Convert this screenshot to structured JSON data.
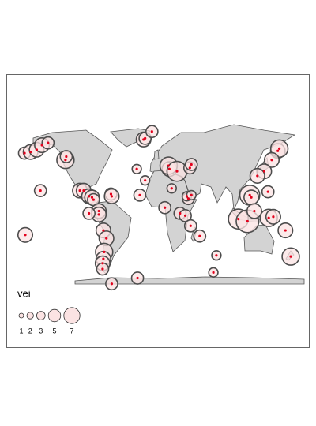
{
  "map": {
    "legend": {
      "title": "vei",
      "values": [
        1,
        2,
        3,
        5,
        7
      ]
    },
    "volcanoes": [
      {
        "lon": -176,
        "lat": 52,
        "vei": 3
      },
      {
        "lon": -168,
        "lat": 53,
        "vei": 4
      },
      {
        "lon": -160,
        "lat": 55,
        "vei": 4
      },
      {
        "lon": -153,
        "lat": 59,
        "vei": 4
      },
      {
        "lon": -145,
        "lat": 61,
        "vei": 3
      },
      {
        "lon": -122,
        "lat": 46,
        "vei": 5
      },
      {
        "lon": -121,
        "lat": 49,
        "vei": 3
      },
      {
        "lon": -103,
        "lat": 19,
        "vei": 4
      },
      {
        "lon": -98,
        "lat": 19,
        "vei": 4
      },
      {
        "lon": -91,
        "lat": 14,
        "vei": 4
      },
      {
        "lon": -87,
        "lat": 13,
        "vei": 4
      },
      {
        "lon": -85,
        "lat": 11,
        "vei": 3
      },
      {
        "lon": -62,
        "lat": 16,
        "vei": 3
      },
      {
        "lon": -61,
        "lat": 14,
        "vei": 4
      },
      {
        "lon": -78,
        "lat": 1,
        "vei": 4
      },
      {
        "lon": -78,
        "lat": -2,
        "vei": 4
      },
      {
        "lon": -72,
        "lat": -16,
        "vei": 4
      },
      {
        "lon": -68,
        "lat": -23,
        "vei": 4
      },
      {
        "lon": -71,
        "lat": -35,
        "vei": 5
      },
      {
        "lon": -72,
        "lat": -41,
        "vei": 4
      },
      {
        "lon": -73,
        "lat": -45,
        "vei": 4
      },
      {
        "lon": -73,
        "lat": -50,
        "vei": 3
      },
      {
        "lon": -91,
        "lat": -1,
        "vei": 3
      },
      {
        "lon": -155,
        "lat": 19,
        "vei": 3
      },
      {
        "lon": -175,
        "lat": -20,
        "vei": 4
      },
      {
        "lon": -19,
        "lat": 64,
        "vei": 4
      },
      {
        "lon": -17,
        "lat": 65,
        "vei": 3
      },
      {
        "lon": -8,
        "lat": 71,
        "vei": 3
      },
      {
        "lon": -28,
        "lat": 38,
        "vei": 2
      },
      {
        "lon": -17,
        "lat": 28,
        "vei": 2
      },
      {
        "lon": -24,
        "lat": 15,
        "vei": 3
      },
      {
        "lon": 15,
        "lat": 38,
        "vei": 4
      },
      {
        "lon": 14,
        "lat": 41,
        "vei": 5
      },
      {
        "lon": 25,
        "lat": 36,
        "vei": 6
      },
      {
        "lon": 42,
        "lat": 39,
        "vei": 3
      },
      {
        "lon": 44,
        "lat": 42,
        "vei": 3
      },
      {
        "lon": 29,
        "lat": -1,
        "vei": 3
      },
      {
        "lon": 36,
        "lat": -3,
        "vei": 3
      },
      {
        "lon": 40,
        "lat": 12,
        "vei": 3
      },
      {
        "lon": 38,
        "lat": 14,
        "vei": 2
      },
      {
        "lon": 9,
        "lat": 4,
        "vei": 3
      },
      {
        "lon": 18,
        "lat": 21,
        "vei": 2
      },
      {
        "lon": 44,
        "lat": 15,
        "vei": 2
      },
      {
        "lon": 43,
        "lat": -12,
        "vei": 3
      },
      {
        "lon": 55,
        "lat": -21,
        "vei": 3
      },
      {
        "lon": 77,
        "lat": -38,
        "vei": 2
      },
      {
        "lon": 73,
        "lat": -53,
        "vei": 2
      },
      {
        "lon": 158,
        "lat": 54,
        "vei": 4
      },
      {
        "lon": 160,
        "lat": 56,
        "vei": 5
      },
      {
        "lon": 150,
        "lat": 46,
        "vei": 4
      },
      {
        "lon": 140,
        "lat": 36,
        "vei": 4
      },
      {
        "lon": 131,
        "lat": 32,
        "vei": 4
      },
      {
        "lon": 121,
        "lat": 15,
        "vei": 6
      },
      {
        "lon": 123,
        "lat": 13,
        "vei": 4
      },
      {
        "lon": 106,
        "lat": -6,
        "vei": 6
      },
      {
        "lon": 118,
        "lat": -8,
        "vei": 7
      },
      {
        "lon": 127,
        "lat": 1,
        "vei": 4
      },
      {
        "lon": 146,
        "lat": -5,
        "vei": 5
      },
      {
        "lon": 152,
        "lat": -4,
        "vei": 4
      },
      {
        "lon": 168,
        "lat": -16,
        "vei": 4
      },
      {
        "lon": 175,
        "lat": -39,
        "vei": 5
      },
      {
        "lon": 145,
        "lat": 18,
        "vei": 3
      },
      {
        "lon": -61,
        "lat": -63,
        "vei": 3
      },
      {
        "lon": -27,
        "lat": -58,
        "vei": 3
      }
    ]
  }
}
